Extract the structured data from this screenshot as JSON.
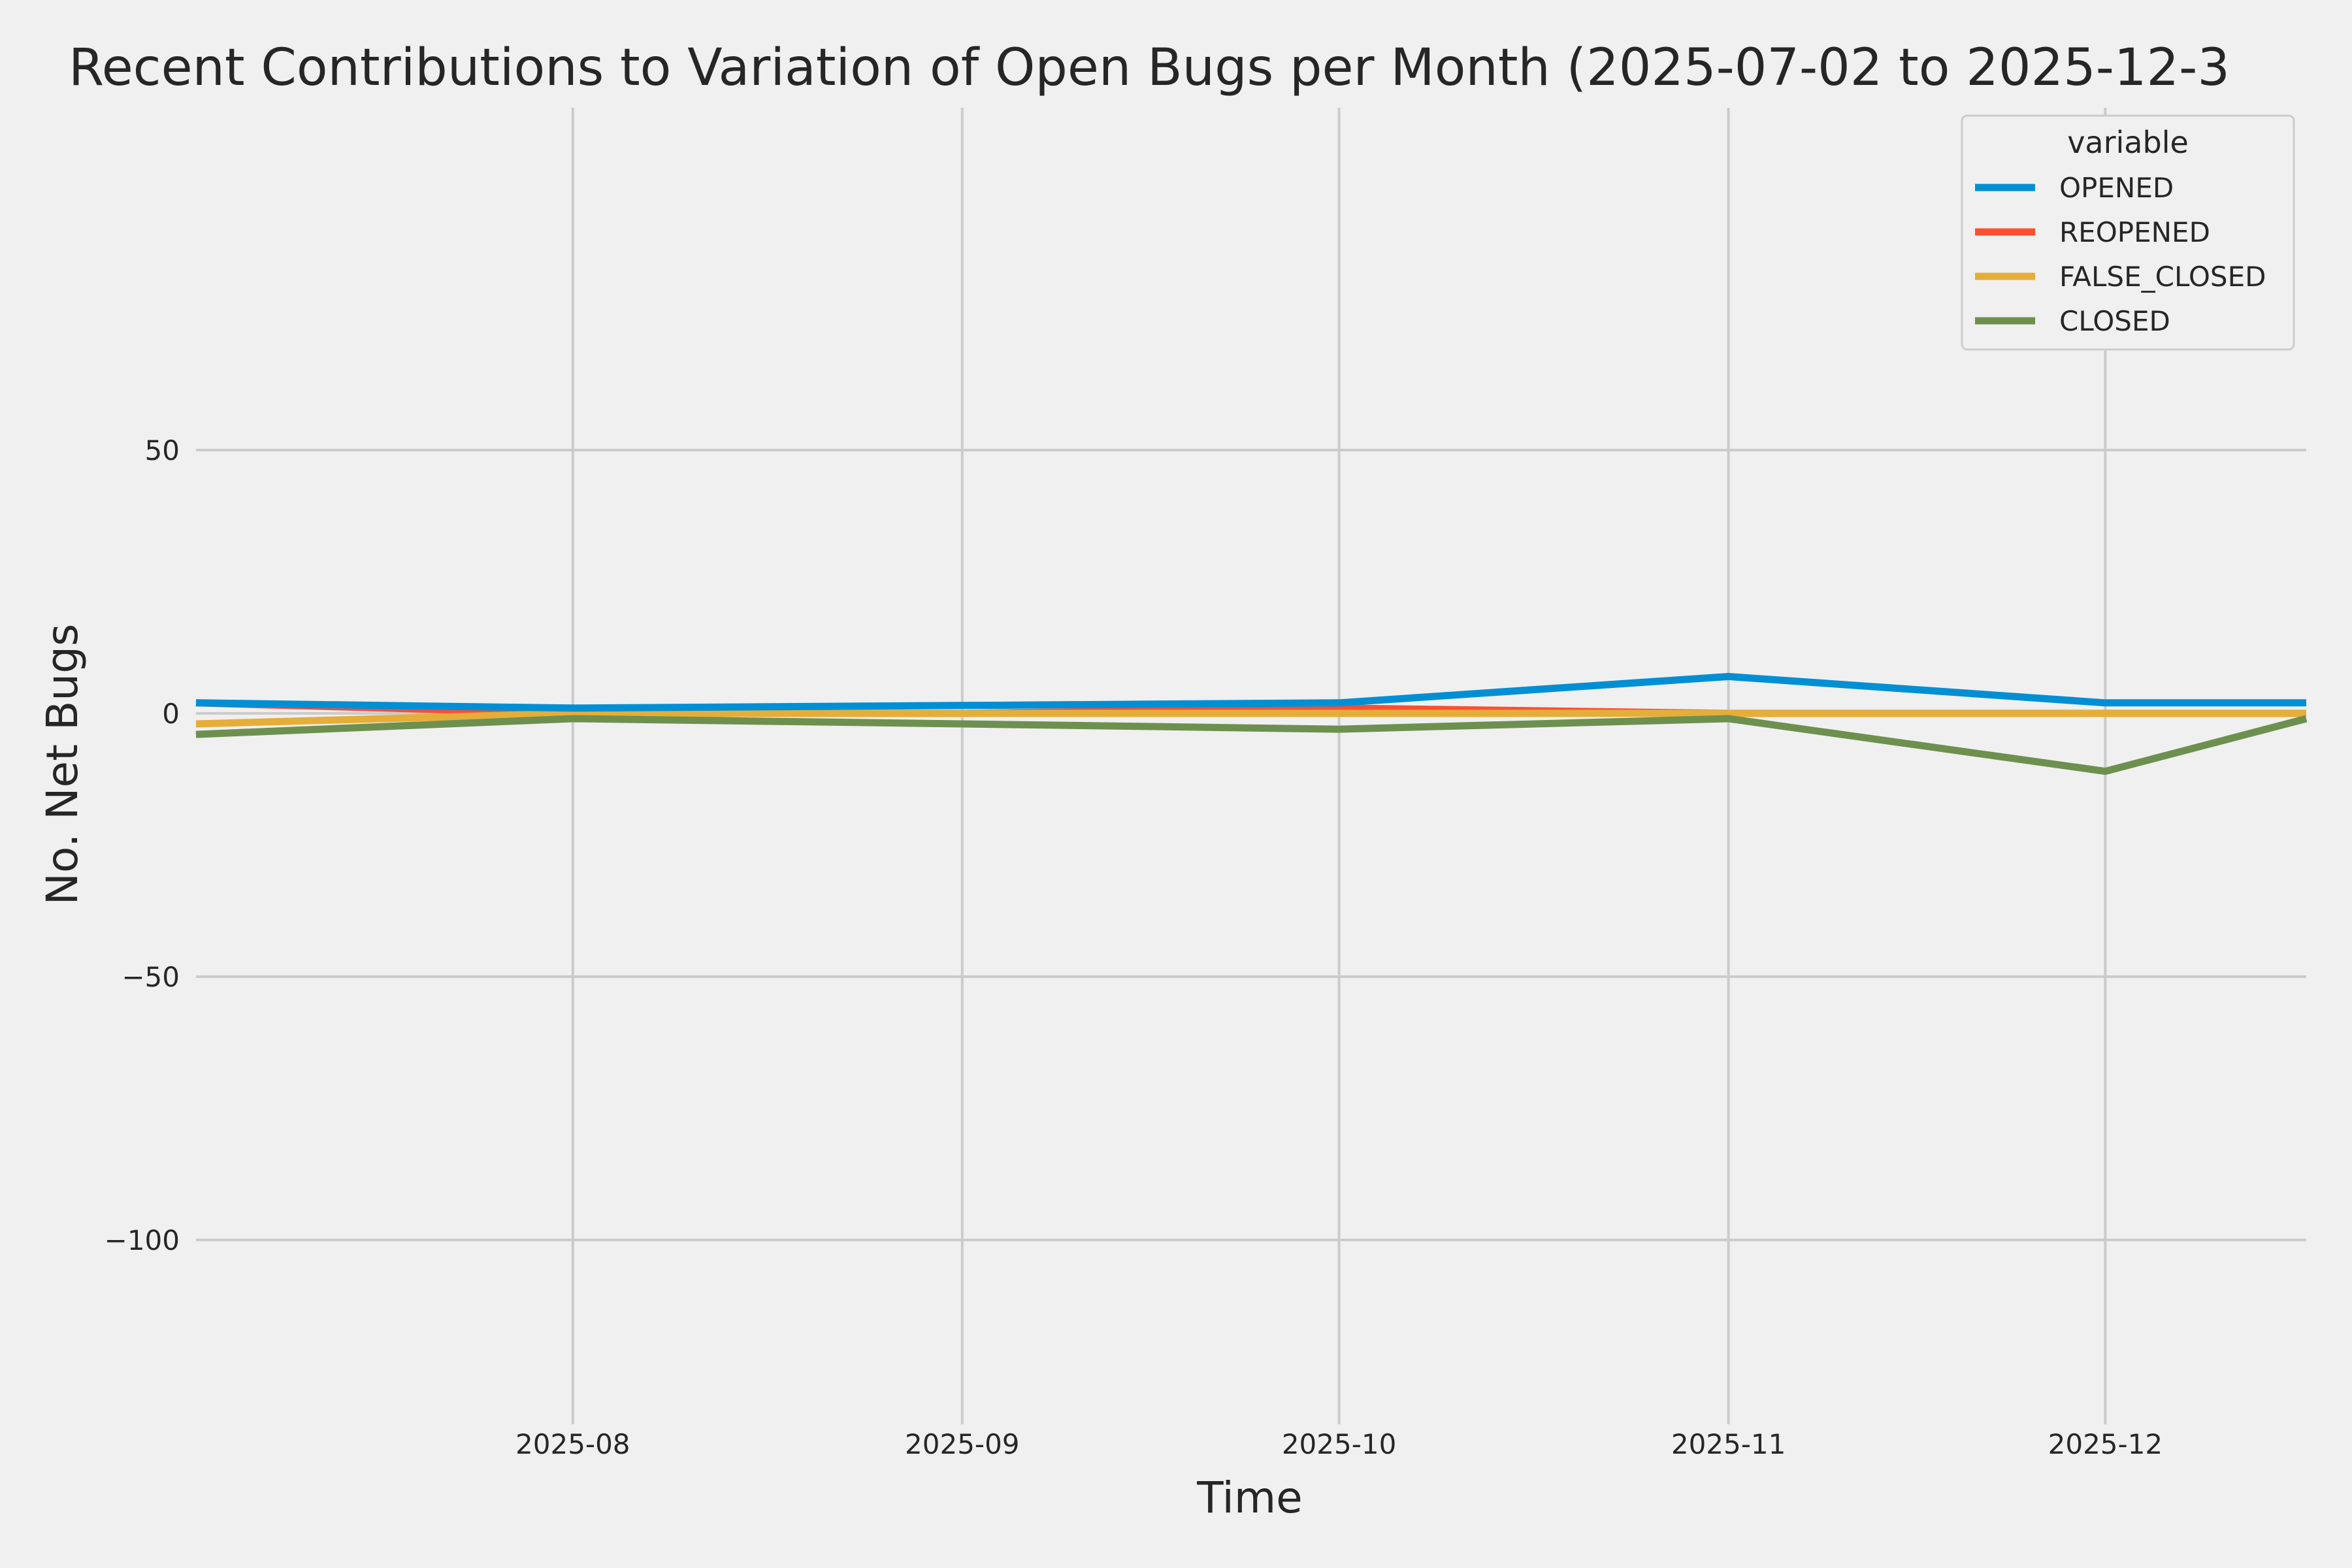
{
  "chart_data": {
    "type": "line",
    "title": "Recent Contributions to Variation of Open Bugs per Month (2025-07-02 to 2025-12-3",
    "xlabel": "Time",
    "ylabel": "No. Net Bugs",
    "x": [
      "2025-07-02",
      "2025-08-01",
      "2025-09-01",
      "2025-10-01",
      "2025-11-01",
      "2025-12-01",
      "2025-12-17"
    ],
    "x_ticks": [
      "2025-08",
      "2025-09",
      "2025-10",
      "2025-11",
      "2025-12"
    ],
    "x_tick_dates": [
      "2025-08-01",
      "2025-09-01",
      "2025-10-01",
      "2025-11-01",
      "2025-12-01"
    ],
    "xlim": [
      "2025-07-02",
      "2025-12-17"
    ],
    "y_ticks": [
      50,
      0,
      -50,
      -100
    ],
    "y_tick_labels": [
      "50",
      "0",
      "−50",
      "−100"
    ],
    "ylim": [
      -135,
      115
    ],
    "grid": true,
    "legend": {
      "title": "variable",
      "placement": "top-right"
    },
    "series": [
      {
        "name": "OPENED",
        "color": "#008fd5",
        "values": [
          2,
          1,
          1.5,
          2,
          7,
          2,
          2
        ]
      },
      {
        "name": "REOPENED",
        "color": "#fc4f30",
        "values": [
          2,
          0,
          0,
          1,
          0,
          0,
          0
        ]
      },
      {
        "name": "FALSE_CLOSED",
        "color": "#e5ae38",
        "values": [
          -2,
          0,
          0,
          0,
          0,
          0,
          0
        ]
      },
      {
        "name": "CLOSED",
        "color": "#6d904f",
        "values": [
          -4,
          -1,
          -2,
          -3,
          -1,
          -11,
          -1
        ]
      }
    ]
  }
}
